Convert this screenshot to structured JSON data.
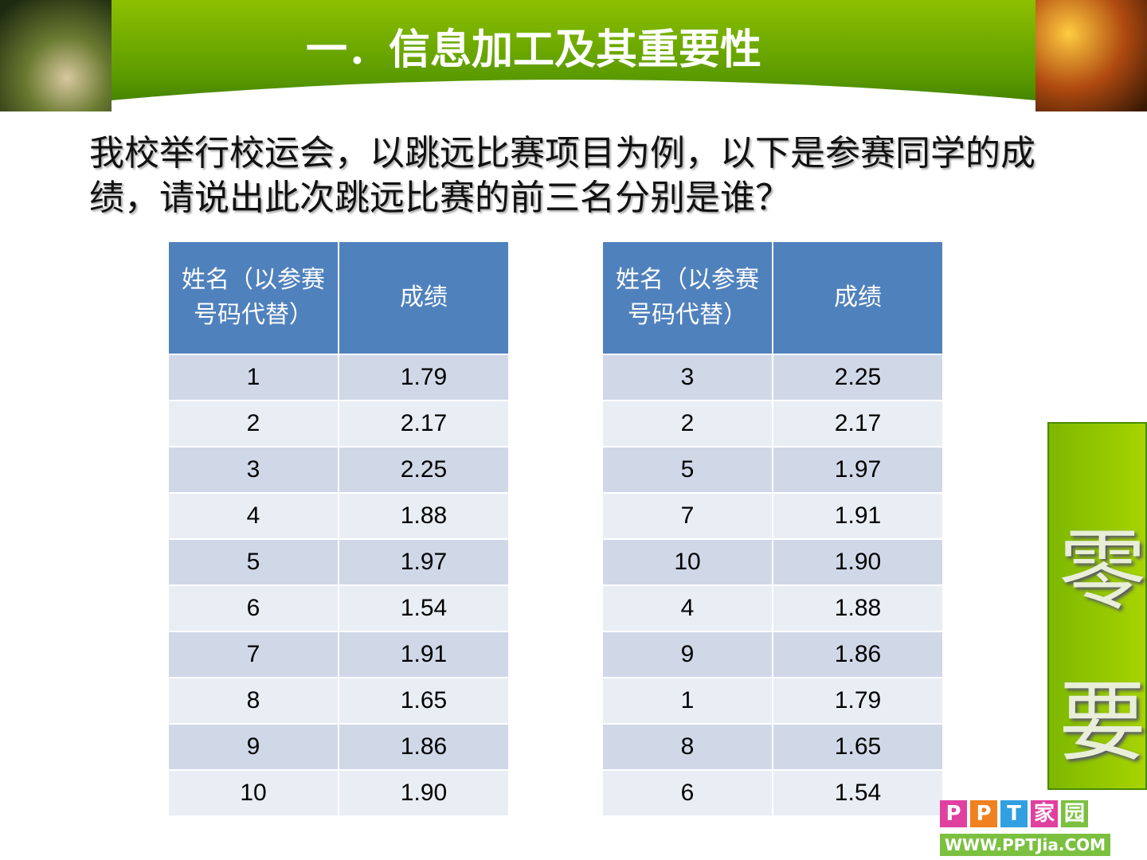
{
  "header": {
    "title": "一．信息加工及其重要性"
  },
  "intro": "我校举行校运会，以跳远比赛项目为例，以下是参赛同学的成绩，请说出此次跳远比赛的前三名分别是谁？",
  "tables": [
    {
      "columns": [
        "姓名（以参赛号码代替）",
        "成绩"
      ],
      "rows": [
        [
          "1",
          "1.79"
        ],
        [
          "2",
          "2.17"
        ],
        [
          "3",
          "2.25"
        ],
        [
          "4",
          "1.88"
        ],
        [
          "5",
          "1.97"
        ],
        [
          "6",
          "1.54"
        ],
        [
          "7",
          "1.91"
        ],
        [
          "8",
          "1.65"
        ],
        [
          "9",
          "1.86"
        ],
        [
          "10",
          "1.90"
        ]
      ]
    },
    {
      "columns": [
        "姓名（以参赛号码代替）",
        "成绩"
      ],
      "rows": [
        [
          "3",
          "2.25"
        ],
        [
          "2",
          "2.17"
        ],
        [
          "5",
          "1.97"
        ],
        [
          "7",
          "1.91"
        ],
        [
          "10",
          "1.90"
        ],
        [
          "4",
          "1.88"
        ],
        [
          "9",
          "1.86"
        ],
        [
          "1",
          "1.79"
        ],
        [
          "8",
          "1.65"
        ],
        [
          "6",
          "1.54"
        ]
      ]
    }
  ],
  "side": {
    "chars": [
      "零",
      "要"
    ]
  },
  "logo": {
    "letters": [
      "P",
      "P",
      "T",
      "家",
      "园"
    ],
    "url": "WWW.PPTJia.COM"
  }
}
